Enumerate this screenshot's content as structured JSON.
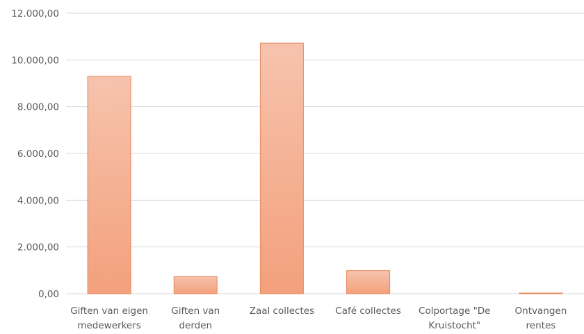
{
  "chart_data": {
    "type": "bar",
    "title": "",
    "xlabel": "",
    "ylabel": "",
    "categories": [
      [
        "Giften van eigen",
        "medewerkers"
      ],
      [
        "Giften van",
        "derden"
      ],
      [
        "Zaal collectes"
      ],
      [
        "Café collectes"
      ],
      [
        "Colportage \"De",
        "Kruistocht\""
      ],
      [
        "Ontvangen",
        "rentes"
      ]
    ],
    "values": [
      9300,
      730,
      10720,
      990,
      0,
      30
    ],
    "ylim": [
      0,
      12000
    ],
    "yticks": [
      "0,00",
      "2.000,00",
      "4.000,00",
      "6.000,00",
      "8.000,00",
      "10.000,00",
      "12.000,00"
    ],
    "ytick_values": [
      0,
      2000,
      4000,
      6000,
      8000,
      10000,
      12000
    ],
    "grid": true,
    "legend": "none",
    "colors": {
      "bar_top": "#f6c3ad",
      "bar_bottom": "#f3a07c",
      "bar_stroke": "#e8875d",
      "grid": "#d9d9d9",
      "text": "#595959"
    }
  }
}
